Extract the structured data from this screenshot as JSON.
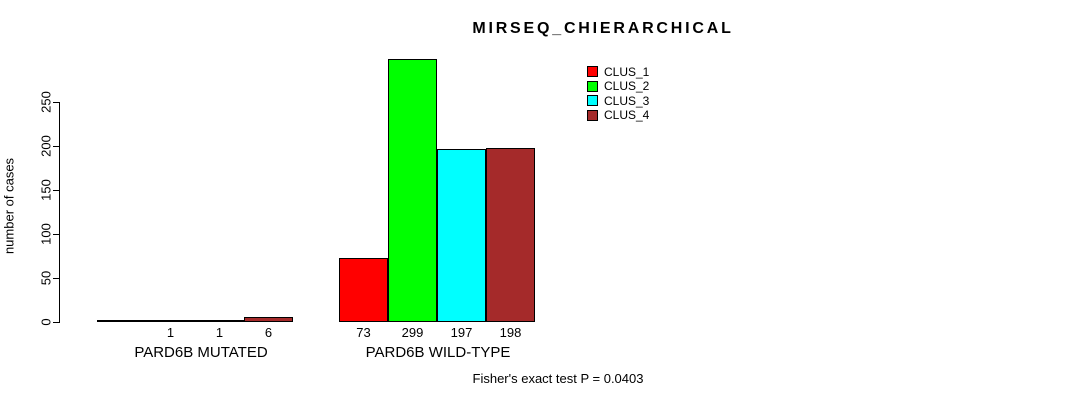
{
  "chart_data": {
    "type": "bar",
    "title": "MIRSEQ_CHIERARCHICAL",
    "ylabel": "number of cases",
    "xlabel": "",
    "ylim": [
      0,
      250
    ],
    "yticks": [
      0,
      50,
      100,
      150,
      200,
      250
    ],
    "grid": false,
    "legend_position": "top-right",
    "categories": [
      "PARD6B MUTATED",
      "PARD6B WILD-TYPE"
    ],
    "series": [
      {
        "name": "CLUS_1",
        "color": "#FF0000",
        "values": [
          0,
          73
        ]
      },
      {
        "name": "CLUS_2",
        "color": "#00FF00",
        "values": [
          1,
          299
        ]
      },
      {
        "name": "CLUS_3",
        "color": "#00FFFF",
        "values": [
          1,
          197
        ]
      },
      {
        "name": "CLUS_4",
        "color": "#A52A2A",
        "values": [
          6,
          198
        ]
      }
    ],
    "bar_count_labels": [
      [
        "",
        "1",
        "1",
        "6"
      ],
      [
        "73",
        "299",
        "197",
        "198"
      ]
    ],
    "footnote": "Fisher's exact test P = 0.0403"
  }
}
